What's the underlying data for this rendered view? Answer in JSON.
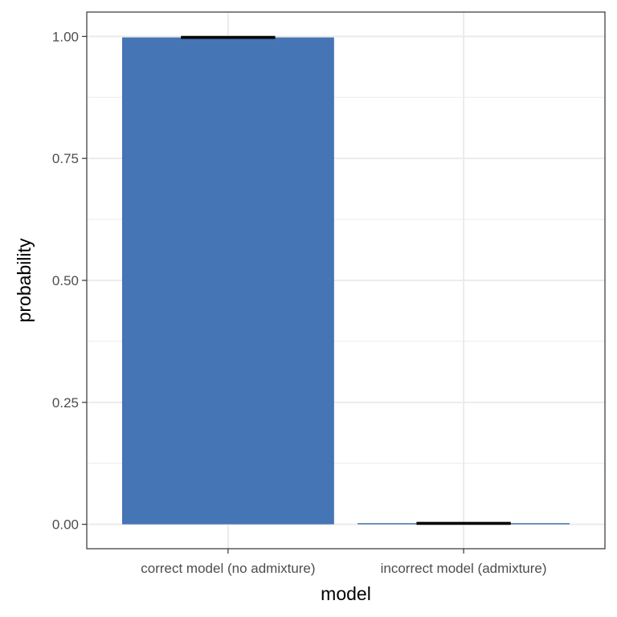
{
  "chart_data": {
    "type": "bar",
    "categories": [
      "correct model (no admixture)",
      "incorrect model (admixture)"
    ],
    "values": [
      0.998,
      0.002
    ],
    "error_bars": [
      [
        0.997,
        0.999
      ],
      [
        0.001,
        0.003
      ]
    ],
    "xlabel": "model",
    "ylabel": "probability",
    "ylim": [
      -0.05,
      1.05
    ],
    "yticks": [
      0.0,
      0.25,
      0.5,
      0.75,
      1.0
    ],
    "ytick_labels": [
      "0.00",
      "0.25",
      "0.50",
      "0.75",
      "1.00"
    ],
    "bar_color": "#4575b4",
    "grid": true,
    "theme": "bw"
  }
}
